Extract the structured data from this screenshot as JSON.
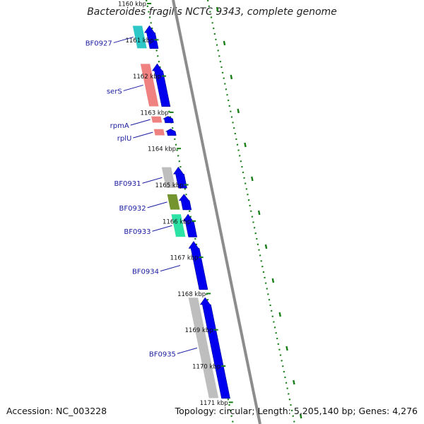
{
  "title": "Bacteroides fragilis NCTC 9343, complete genome",
  "accession": "Accession: NC_003228",
  "topology": "Topology: circular; Length: 5,205,140 bp; Genes: 4,276",
  "colors": {
    "backbone": "#8c8c8c",
    "cds_arrow": "#0000ee",
    "dotted_tracks": "#1a7f1a",
    "label": "#1a1aa0"
  },
  "ticks": [
    {
      "label": "1160 kbp",
      "pos": 1160
    },
    {
      "label": "1161 kbp",
      "pos": 1161
    },
    {
      "label": "1162 kbp",
      "pos": 1162
    },
    {
      "label": "1163 kbp",
      "pos": 1163
    },
    {
      "label": "1164 kbp",
      "pos": 1164
    },
    {
      "label": "1165 kbp",
      "pos": 1165
    },
    {
      "label": "1166 kbp",
      "pos": 1166
    },
    {
      "label": "1167 kbp",
      "pos": 1167
    },
    {
      "label": "1168 kbp",
      "pos": 1168
    },
    {
      "label": "1169 kbp",
      "pos": 1169
    },
    {
      "label": "1170 kbp",
      "pos": 1170
    },
    {
      "label": "1171 kbp",
      "pos": 1171
    }
  ],
  "genes": [
    {
      "name": "BF0927",
      "start": 1160.55,
      "end": 1161.3,
      "color": "#22c4c4"
    },
    {
      "name": "serS",
      "start": 1161.6,
      "end": 1162.9,
      "color": "#ee7a7a"
    },
    {
      "name": "rpmA",
      "start": 1163.05,
      "end": 1163.35,
      "color": "#ee7a7a"
    },
    {
      "name": "rplU",
      "start": 1163.4,
      "end": 1163.7,
      "color": "#ee7a7a"
    },
    {
      "name": "BF0931",
      "start": 1164.45,
      "end": 1165.15,
      "color": "#bbbbbb"
    },
    {
      "name": "BF0932",
      "start": 1165.2,
      "end": 1165.75,
      "color": "#6b8e23"
    },
    {
      "name": "BF0933",
      "start": 1165.75,
      "end": 1166.5,
      "color": "#22e0a0"
    },
    {
      "name": "BF0934",
      "start": 1166.5,
      "end": 1167.95,
      "color": "#ffffff"
    },
    {
      "name": "BF0935",
      "start": 1168.05,
      "end": 1170.95,
      "color": "#bbbbbb"
    }
  ]
}
